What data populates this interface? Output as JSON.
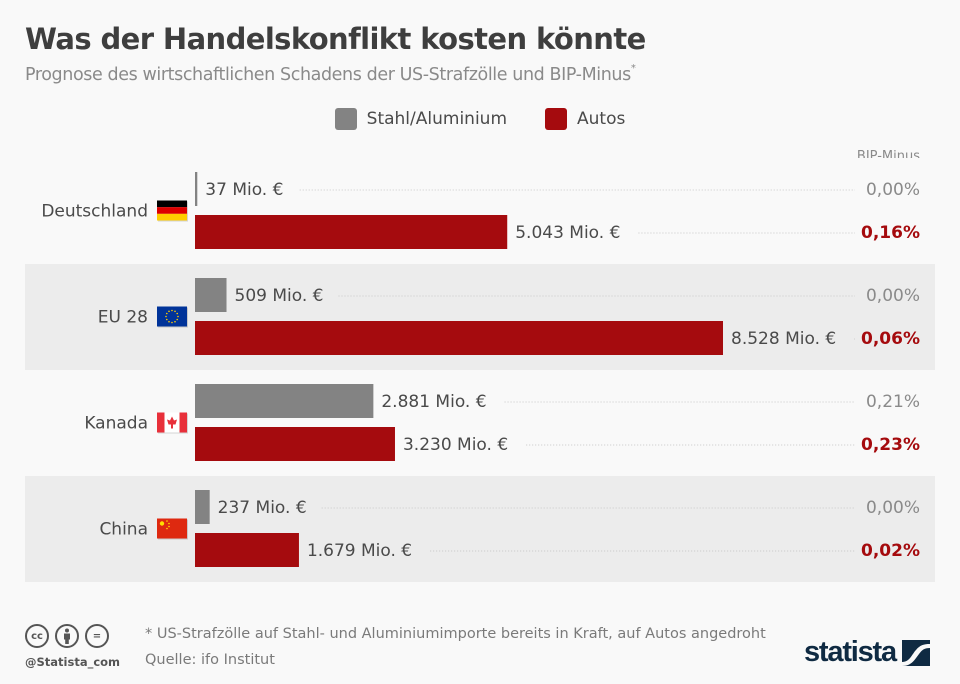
{
  "header": {
    "title": "Was der Handelskonflikt kosten könnte",
    "subtitle": "Prognose des wirtschaftlichen Schadens der US-Strafzölle und BIP-Minus",
    "subtitle_marker": "*"
  },
  "chart_data": {
    "type": "bar",
    "orientation": "horizontal",
    "title": "Was der Handelskonflikt kosten könnte",
    "subtitle": "Prognose des wirtschaftlichen Schadens der US-Strafzölle und BIP-Minus*",
    "unit": "Mio. €",
    "categories": [
      "Deutschland",
      "EU 28",
      "Kanada",
      "China"
    ],
    "flags": [
      "flag-germany",
      "flag-eu",
      "flag-canada",
      "flag-china"
    ],
    "series": [
      {
        "name": "Stahl/Aluminium",
        "color": "#838383",
        "values": [
          37,
          509,
          2881,
          237
        ],
        "labels": [
          "37 Mio. €",
          "509 Mio. €",
          "2.881 Mio. €",
          "237 Mio. €"
        ],
        "bip_minus": [
          "0,00%",
          "0,00%",
          "0,21%",
          "0,00%"
        ],
        "bip_color": "#8a8a8a"
      },
      {
        "name": "Autos",
        "color": "#a50b0e",
        "values": [
          5043,
          8528,
          3230,
          1679
        ],
        "labels": [
          "5.043 Mio. €",
          "8.528 Mio. €",
          "3.230 Mio. €",
          "1.679 Mio. €"
        ],
        "bip_minus": [
          "0,16%",
          "0,06%",
          "0,23%",
          "0,02%"
        ],
        "bip_color": "#a50b0e"
      }
    ],
    "bip_header": "BIP-Minus",
    "xlim": [
      0,
      8528
    ],
    "legend": "top-center",
    "band_colors": [
      "#f9f9f9",
      "#ececec"
    ]
  },
  "footer": {
    "footnote": "* US-Strafzölle auf Stahl- und Aluminiumimporte bereits in Kraft, auf Autos angedroht",
    "source": "Quelle: ifo Institut",
    "handle": "@Statista_com",
    "logo": "statista",
    "cc_labels": [
      "cc",
      "i",
      "="
    ]
  }
}
